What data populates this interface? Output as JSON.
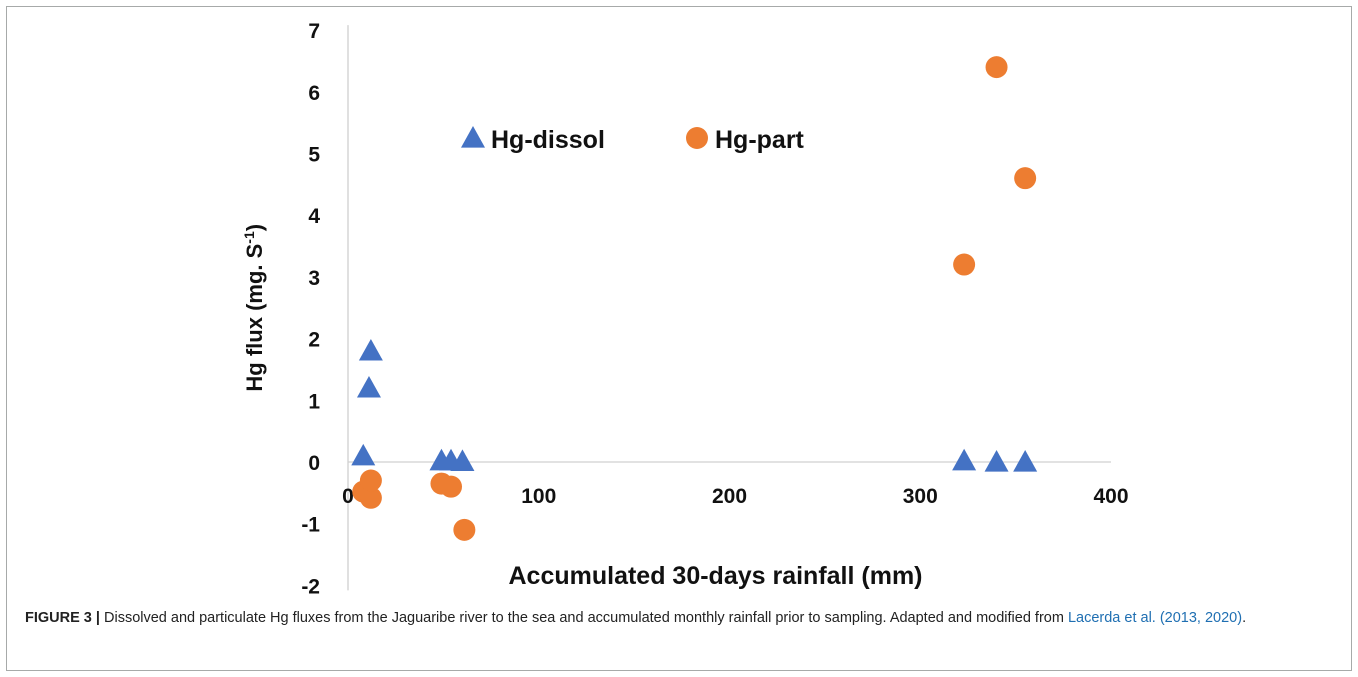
{
  "chart_data": {
    "type": "scatter",
    "xlabel": "Accumulated 30-days rainfall (mm)",
    "ylabel_main": "Hg flux (mg. S",
    "ylabel_sup": "-1",
    "ylabel_close": ")",
    "xlim": [
      0,
      400
    ],
    "ylim": [
      -2,
      7
    ],
    "xticks": [
      0,
      100,
      200,
      300,
      400
    ],
    "yticks": [
      7,
      6,
      5,
      4,
      3,
      2,
      1,
      0,
      -1,
      -2
    ],
    "legend_position": "top-left",
    "grid": false,
    "series": [
      {
        "name": "Hg-dissol",
        "marker": "triangle",
        "color": "#4472c4",
        "points": [
          [
            8,
            0.1
          ],
          [
            11,
            1.2
          ],
          [
            12,
            1.8
          ],
          [
            49,
            0.02
          ],
          [
            54,
            0.02
          ],
          [
            60,
            0.01
          ],
          [
            323,
            0.02
          ],
          [
            340,
            0.0
          ],
          [
            355,
            0.0
          ]
        ]
      },
      {
        "name": "Hg-part",
        "marker": "circle",
        "color": "#ed7d31",
        "points": [
          [
            8,
            -0.48
          ],
          [
            12,
            -0.58
          ],
          [
            12,
            -0.3
          ],
          [
            49,
            -0.35
          ],
          [
            54,
            -0.4
          ],
          [
            61,
            -1.1
          ],
          [
            323,
            3.2
          ],
          [
            340,
            6.4
          ],
          [
            355,
            4.6
          ]
        ]
      }
    ]
  },
  "caption": {
    "lead": "FIGURE 3 |",
    "text": " Dissolved and particulate Hg fluxes from the Jaguaribe river to the sea and accumulated monthly rainfall prior to sampling. Adapted and modified from ",
    "reference": "Lacerda et al. (2013, 2020)",
    "end": "."
  }
}
